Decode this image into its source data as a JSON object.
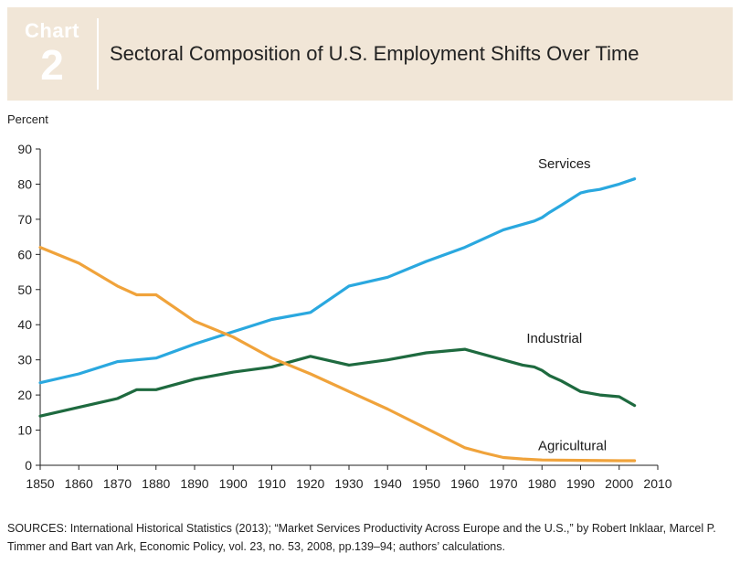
{
  "header": {
    "chart_word": "Chart",
    "chart_number": "2",
    "title": "Sectoral Composition of U.S. Employment Shifts Over Time"
  },
  "chart_data": {
    "type": "line",
    "title": "Sectoral Composition of U.S. Employment Shifts Over Time",
    "xlabel": "",
    "ylabel": "Percent",
    "xlim": [
      1850,
      2010
    ],
    "ylim": [
      0,
      90
    ],
    "x_ticks": [
      1850,
      1860,
      1870,
      1880,
      1890,
      1900,
      1910,
      1920,
      1930,
      1940,
      1950,
      1960,
      1970,
      1980,
      1990,
      2000,
      2010
    ],
    "y_ticks": [
      0,
      10,
      20,
      30,
      40,
      50,
      60,
      70,
      80,
      90
    ],
    "grid": false,
    "series": [
      {
        "name": "Services",
        "color": "#2aa8df",
        "x": [
          1850,
          1860,
          1870,
          1875,
          1880,
          1890,
          1900,
          1910,
          1920,
          1930,
          1940,
          1950,
          1960,
          1970,
          1978,
          1980,
          1982,
          1985,
          1990,
          1992,
          1995,
          2000,
          2004
        ],
        "y": [
          23.5,
          26,
          29.5,
          30,
          30.5,
          34.5,
          38,
          41.5,
          43.5,
          51,
          53.5,
          58,
          62,
          67,
          69.5,
          70.5,
          72,
          74,
          77.5,
          78,
          78.5,
          80,
          81.5
        ]
      },
      {
        "name": "Industrial",
        "color": "#1e6a3f",
        "x": [
          1850,
          1860,
          1870,
          1875,
          1880,
          1890,
          1900,
          1910,
          1920,
          1930,
          1940,
          1950,
          1960,
          1970,
          1975,
          1978,
          1980,
          1982,
          1985,
          1990,
          1995,
          2000,
          2004
        ],
        "y": [
          14,
          16.5,
          19,
          21.5,
          21.5,
          24.5,
          26.5,
          28,
          31,
          28.5,
          30,
          32,
          33,
          30,
          28.5,
          28,
          27,
          25.5,
          24,
          21,
          20,
          19.5,
          17
        ]
      },
      {
        "name": "Agricultural",
        "color": "#f0a33b",
        "x": [
          1850,
          1860,
          1870,
          1875,
          1880,
          1890,
          1900,
          1910,
          1920,
          1930,
          1940,
          1950,
          1960,
          1965,
          1970,
          1975,
          1980,
          1990,
          2000,
          2004
        ],
        "y": [
          62,
          57.5,
          51,
          48.5,
          48.5,
          41,
          36.5,
          30.5,
          26,
          21,
          16,
          10.5,
          5,
          3.5,
          2.2,
          1.8,
          1.5,
          1.4,
          1.3,
          1.3
        ]
      }
    ],
    "annotations": [
      "Services",
      "Industrial",
      "Agricultural"
    ]
  },
  "sources": {
    "text": "SOURCES: International Historical Statistics (2013); “Market Services Productivity Across Europe and the U.S.,” by Robert Inklaar, Marcel P. Timmer and Bart van Ark, Economic Policy, vol. 23, no. 53, 2008, pp.139–94; authors’ calculations."
  }
}
